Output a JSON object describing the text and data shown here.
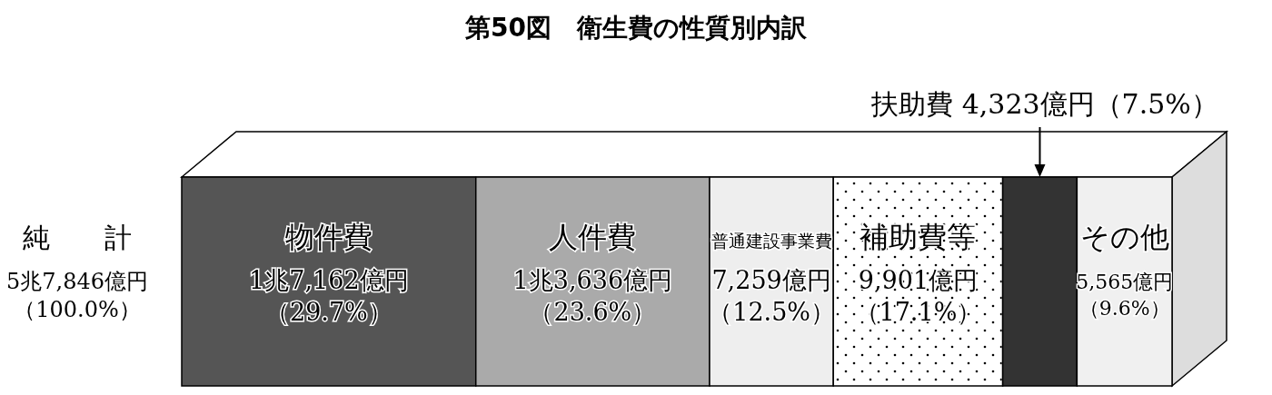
{
  "chart_data": {
    "type": "bar",
    "title": "第50図　衛生費の性質別内訳",
    "orientation": "horizontal",
    "stacked": true,
    "xlim": [
      0,
      100
    ],
    "categories": [
      null
    ],
    "annotations": [
      "純　　計"
    ],
    "totals": [
      "5兆7,846億円（100.0%）"
    ],
    "series": [
      {
        "name": "物件費",
        "color": "#555555",
        "values": [
          29.7
        ],
        "value_labels": [
          "1兆7,162億円（29.7%）"
        ]
      },
      {
        "name": "人件費",
        "color": "#aaaaaa",
        "values": [
          23.6
        ],
        "value_labels": [
          "1兆3,636億円（23.6%）"
        ]
      },
      {
        "name": "普通建設事業費",
        "color": "#eeeeee",
        "values": [
          12.5
        ],
        "value_labels": [
          "7,259億円（12.5%）"
        ]
      },
      {
        "name": "補助費等",
        "color": "#ffffff",
        "values": [
          17.1
        ],
        "value_labels": [
          "9,901億円（17.1%）"
        ]
      },
      {
        "name": "扶助費",
        "color": "#333333",
        "values": [
          7.5
        ],
        "value_labels": [
          "4,323億円（7.5%）"
        ]
      },
      {
        "name": "その他",
        "color": "#f0f0f0",
        "values": [
          9.6
        ],
        "value_labels": [
          "5,565億円（9.6%）"
        ]
      }
    ]
  }
}
